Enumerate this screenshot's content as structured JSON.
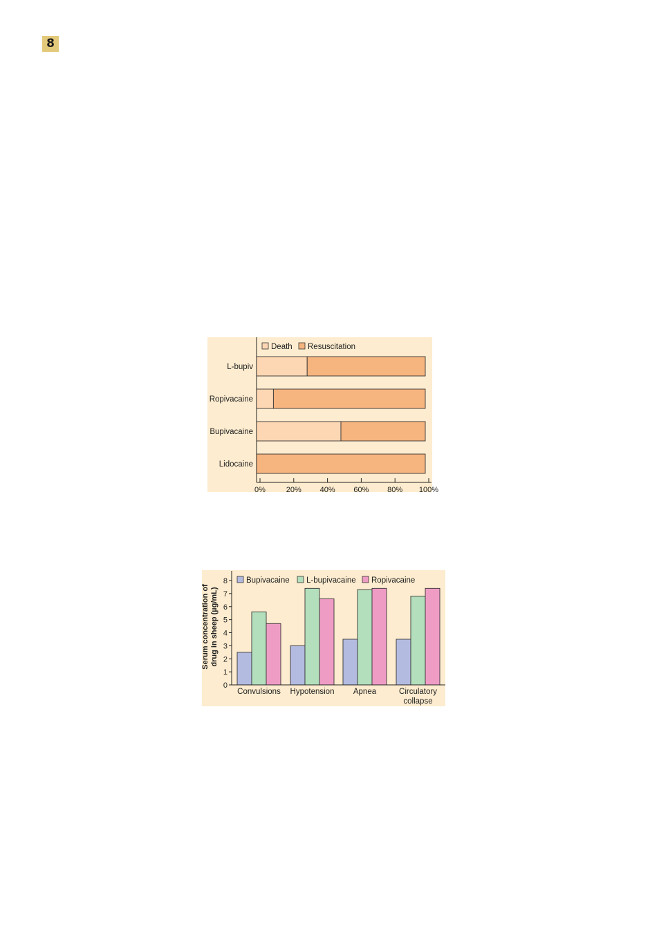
{
  "page": {
    "number": "8"
  },
  "colors": {
    "panel_bg": "#fdeccf",
    "death": "#fdd7b3",
    "resuscitation": "#f6b47f",
    "bupivacaine": "#b3bbe0",
    "l_bupivacaine": "#b3dfbc",
    "ropivacaine": "#ef9cc5"
  },
  "chart_data": [
    {
      "type": "bar",
      "orientation": "horizontal",
      "stacked": true,
      "categories": [
        "L-bupiv",
        "Ropivacaine",
        "Bupivacaine",
        "Lidocaine"
      ],
      "series": [
        {
          "name": "Death",
          "values": [
            30,
            10,
            50,
            0
          ]
        },
        {
          "name": "Resuscitation",
          "values": [
            70,
            90,
            50,
            100
          ]
        }
      ],
      "xticks": [
        "0%",
        "20%",
        "40%",
        "60%",
        "80%",
        "100%"
      ],
      "xlim": [
        0,
        100
      ],
      "legend": "top-left",
      "grid": false
    },
    {
      "type": "bar",
      "categories": [
        "Convulsions",
        "Hypotension",
        "Apnea",
        "Circulatory collapse"
      ],
      "series": [
        {
          "name": "Bupivacaine",
          "values": [
            2.5,
            3.0,
            3.5,
            3.5
          ]
        },
        {
          "name": "L-bupivacaine",
          "values": [
            5.6,
            7.4,
            7.3,
            6.8
          ]
        },
        {
          "name": "Ropivacaine",
          "values": [
            4.7,
            6.6,
            7.4,
            7.4
          ]
        }
      ],
      "ylabel_line1": "Serum concentration of",
      "ylabel_line2": "drug in sheep (µg/mL)",
      "yticks": [
        "0",
        "1",
        "2",
        "3",
        "4",
        "5",
        "6",
        "7",
        "8"
      ],
      "ylim": [
        0,
        8.5
      ],
      "legend": "top-left",
      "grid": false
    }
  ]
}
